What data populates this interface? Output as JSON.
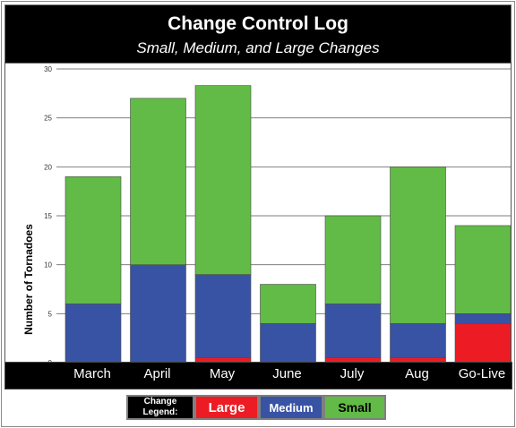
{
  "header": {
    "title": "Change Control Log",
    "subtitle": "Small, Medium, and Large Changes"
  },
  "legend": {
    "title_line1": "Change",
    "title_line2": "Legend:",
    "items": [
      "Large",
      "Medium",
      "Small"
    ]
  },
  "colors": {
    "large": "#ed1c24",
    "medium": "#3953a4",
    "small": "#62bb46",
    "gridline": "#7f7f7f"
  },
  "chart_data": {
    "type": "bar",
    "stacked": true,
    "categories": [
      "March",
      "April",
      "May",
      "June",
      "July",
      "Aug",
      "Go-Live"
    ],
    "series": [
      {
        "name": "Large",
        "values": [
          0,
          0,
          0.5,
          0,
          0.5,
          0.5,
          4
        ]
      },
      {
        "name": "Medium",
        "values": [
          6,
          10,
          8.5,
          4,
          5.5,
          3.5,
          1
        ]
      },
      {
        "name": "Small",
        "values": [
          13,
          17,
          19.3,
          4,
          9,
          16,
          9
        ]
      }
    ],
    "ylabel": "Number of Tornadoes",
    "xlabel": "",
    "ylim": [
      0,
      30
    ],
    "yticks": [
      "0",
      "5",
      "10",
      "15",
      "20",
      "25",
      "30"
    ],
    "grid": true,
    "legend_position": "bottom"
  }
}
